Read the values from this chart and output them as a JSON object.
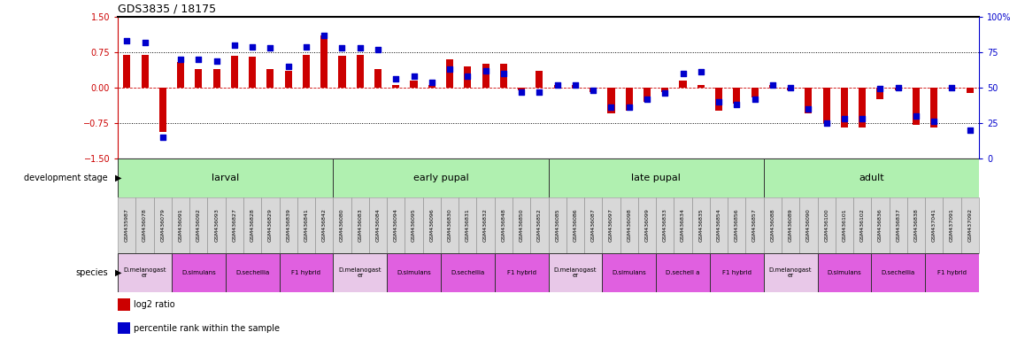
{
  "title": "GDS3835 / 18175",
  "samples": [
    "GSM435987",
    "GSM436078",
    "GSM436079",
    "GSM436091",
    "GSM436092",
    "GSM436093",
    "GSM436827",
    "GSM436828",
    "GSM436829",
    "GSM436839",
    "GSM436841",
    "GSM436842",
    "GSM436080",
    "GSM436083",
    "GSM436084",
    "GSM436094",
    "GSM436095",
    "GSM436096",
    "GSM436830",
    "GSM436831",
    "GSM436832",
    "GSM436848",
    "GSM436850",
    "GSM436852",
    "GSM436085",
    "GSM436086",
    "GSM436087",
    "GSM436097",
    "GSM436098",
    "GSM436099",
    "GSM436833",
    "GSM436834",
    "GSM436835",
    "GSM436854",
    "GSM436856",
    "GSM436857",
    "GSM436088",
    "GSM436089",
    "GSM436090",
    "GSM436100",
    "GSM436101",
    "GSM436102",
    "GSM436836",
    "GSM436837",
    "GSM436838",
    "GSM437041",
    "GSM437091",
    "GSM437092"
  ],
  "log2_ratio": [
    0.7,
    0.7,
    -0.95,
    0.55,
    0.4,
    0.4,
    0.68,
    0.65,
    0.4,
    0.35,
    0.7,
    1.1,
    0.68,
    0.7,
    0.4,
    0.05,
    0.15,
    0.05,
    0.6,
    0.45,
    0.5,
    0.5,
    -0.05,
    0.35,
    0.05,
    0.05,
    -0.1,
    -0.55,
    -0.5,
    -0.3,
    -0.1,
    0.15,
    0.05,
    -0.5,
    -0.35,
    -0.2,
    0.05,
    -0.05,
    -0.55,
    -0.75,
    -0.85,
    -0.85,
    -0.25,
    -0.05,
    -0.8,
    -0.85,
    -0.02,
    -0.12
  ],
  "percentile": [
    83,
    82,
    15,
    70,
    70,
    69,
    80,
    79,
    78,
    65,
    79,
    87,
    78,
    78,
    77,
    56,
    58,
    54,
    63,
    58,
    62,
    60,
    47,
    47,
    52,
    52,
    48,
    36,
    36,
    42,
    46,
    60,
    61,
    40,
    38,
    42,
    52,
    50,
    35,
    25,
    28,
    28,
    49,
    50,
    30,
    26,
    50,
    20
  ],
  "dev_stages": [
    {
      "label": "larval",
      "start": 0,
      "end": 12
    },
    {
      "label": "early pupal",
      "start": 12,
      "end": 24
    },
    {
      "label": "late pupal",
      "start": 24,
      "end": 36
    },
    {
      "label": "adult",
      "start": 36,
      "end": 48
    }
  ],
  "species_groups": [
    {
      "label": "D.melanogast\ner",
      "start": 0,
      "end": 3,
      "color": "#e8c8e8"
    },
    {
      "label": "D.simulans",
      "start": 3,
      "end": 6,
      "color": "#e060e0"
    },
    {
      "label": "D.sechellia",
      "start": 6,
      "end": 9,
      "color": "#e060e0"
    },
    {
      "label": "F1 hybrid",
      "start": 9,
      "end": 12,
      "color": "#e060e0"
    },
    {
      "label": "D.melanogast\ner",
      "start": 12,
      "end": 15,
      "color": "#e8c8e8"
    },
    {
      "label": "D.simulans",
      "start": 15,
      "end": 18,
      "color": "#e060e0"
    },
    {
      "label": "D.sechellia",
      "start": 18,
      "end": 21,
      "color": "#e060e0"
    },
    {
      "label": "F1 hybrid",
      "start": 21,
      "end": 24,
      "color": "#e060e0"
    },
    {
      "label": "D.melanogast\ner",
      "start": 24,
      "end": 27,
      "color": "#e8c8e8"
    },
    {
      "label": "D.simulans",
      "start": 27,
      "end": 30,
      "color": "#e060e0"
    },
    {
      "label": "D.sechell a",
      "start": 30,
      "end": 33,
      "color": "#e060e0"
    },
    {
      "label": "F1 hybrid",
      "start": 33,
      "end": 36,
      "color": "#e060e0"
    },
    {
      "label": "D.melanogast\ner",
      "start": 36,
      "end": 39,
      "color": "#e8c8e8"
    },
    {
      "label": "D.simulans",
      "start": 39,
      "end": 42,
      "color": "#e060e0"
    },
    {
      "label": "D.sechellia",
      "start": 42,
      "end": 45,
      "color": "#e060e0"
    },
    {
      "label": "F1 hybrid",
      "start": 45,
      "end": 48,
      "color": "#e060e0"
    }
  ],
  "bar_color": "#cc0000",
  "dot_color": "#0000cc",
  "left_ylim": [
    -1.5,
    1.5
  ],
  "right_ylim": [
    0,
    100
  ],
  "left_yticks": [
    -1.5,
    -0.75,
    0,
    0.75,
    1.5
  ],
  "right_yticks": [
    0,
    25,
    50,
    75,
    100
  ],
  "dev_stage_color": "#b0f0b0",
  "dev_stage_edge": "#008000",
  "background_color": "#ffffff"
}
